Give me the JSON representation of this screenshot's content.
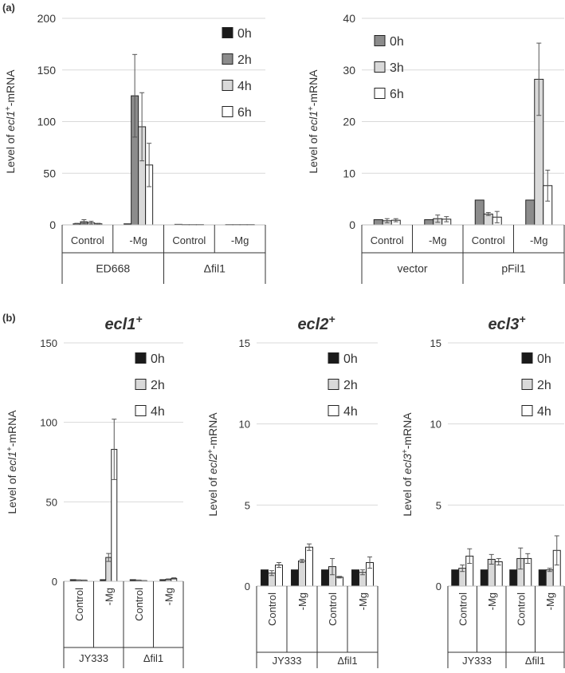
{
  "figure": {
    "panel_a_label": "(a)",
    "panel_b_label": "(b)"
  },
  "chart_data": [
    {
      "id": "a1",
      "type": "bar",
      "title": "",
      "ylabel_parts": [
        "Level of ",
        "ecl1",
        "+",
        "-mRNA"
      ],
      "ylim": [
        0,
        200
      ],
      "yticks": [
        0,
        50,
        100,
        150,
        200
      ],
      "grid": true,
      "legend_position": "top-right",
      "categories": [
        "Control",
        "-Mg",
        "Control",
        "-Mg"
      ],
      "groups": [
        "ED668",
        "Δfil1"
      ],
      "series": [
        {
          "name": "0h",
          "color": "#1a1a1a",
          "values": [
            1,
            1,
            0.5,
            0.3
          ],
          "errors": [
            0.5,
            0,
            0,
            0
          ]
        },
        {
          "name": "2h",
          "color": "#8c8c8c",
          "values": [
            3,
            125,
            0.3,
            0.3
          ],
          "errors": [
            2,
            40,
            0,
            0
          ]
        },
        {
          "name": "4h",
          "color": "#d9d9d9",
          "values": [
            2,
            95,
            0.3,
            0.3
          ],
          "errors": [
            1.5,
            33,
            0,
            0
          ]
        },
        {
          "name": "6h",
          "color": "#ffffff",
          "values": [
            1,
            58,
            0.3,
            0.3
          ],
          "errors": [
            0.5,
            21,
            0,
            0
          ]
        }
      ]
    },
    {
      "id": "a2",
      "type": "bar",
      "title": "",
      "ylabel_parts": [
        "Level of ",
        "ecl1",
        "+",
        "-mRNA"
      ],
      "ylim": [
        0,
        40
      ],
      "yticks": [
        0,
        10,
        20,
        30,
        40
      ],
      "grid": true,
      "legend_position": "top-left",
      "categories": [
        "Control",
        "-Mg",
        "Control",
        "-Mg"
      ],
      "groups": [
        "vector",
        "pFil1"
      ],
      "series": [
        {
          "name": "0h",
          "color": "#8c8c8c",
          "values": [
            1,
            1,
            4.8,
            4.8
          ],
          "errors": [
            0,
            0,
            0,
            0
          ]
        },
        {
          "name": "3h",
          "color": "#d9d9d9",
          "values": [
            0.8,
            1.2,
            2.1,
            28.2
          ],
          "errors": [
            0.4,
            0.7,
            0.3,
            7
          ]
        },
        {
          "name": "6h",
          "color": "#ffffff",
          "values": [
            0.9,
            1.1,
            1.5,
            7.6
          ],
          "errors": [
            0.3,
            0.5,
            1.1,
            3
          ]
        }
      ]
    },
    {
      "id": "b1",
      "type": "bar",
      "title_parts": [
        "ecl1",
        "+"
      ],
      "ylabel_parts": [
        "Level of ",
        "ecl1",
        "+",
        "-mRNA"
      ],
      "ylim": [
        0,
        150
      ],
      "yticks": [
        0,
        50,
        100,
        150
      ],
      "grid": true,
      "legend_position": "top-right",
      "categories": [
        "Control",
        "-Mg",
        "Control",
        "-Mg"
      ],
      "groups": [
        "JY333",
        "Δfil1"
      ],
      "series": [
        {
          "name": "0h",
          "color": "#1a1a1a",
          "values": [
            1,
            1,
            1,
            1
          ],
          "errors": [
            0,
            0,
            0,
            0
          ]
        },
        {
          "name": "2h",
          "color": "#d9d9d9",
          "values": [
            0.7,
            15,
            0.6,
            1.2
          ],
          "errors": [
            0.2,
            2.5,
            0.2,
            0.3
          ]
        },
        {
          "name": "4h",
          "color": "#ffffff",
          "values": [
            0.6,
            83,
            0.4,
            1.8
          ],
          "errors": [
            0.2,
            19,
            0.1,
            0.4
          ]
        }
      ]
    },
    {
      "id": "b2",
      "type": "bar",
      "title_parts": [
        "ecl2",
        "+"
      ],
      "ylabel_parts": [
        "Level of ",
        "ecl2",
        "+",
        "-mRNA"
      ],
      "ylim": [
        0,
        15
      ],
      "yticks": [
        0,
        5,
        10,
        15
      ],
      "grid": true,
      "legend_position": "top-right",
      "categories": [
        "Control",
        "-Mg",
        "Control",
        "-Mg"
      ],
      "groups": [
        "JY333",
        "Δfil1"
      ],
      "series": [
        {
          "name": "0h",
          "color": "#1a1a1a",
          "values": [
            1,
            1,
            1,
            1
          ],
          "errors": [
            0,
            0,
            0,
            0
          ]
        },
        {
          "name": "2h",
          "color": "#d9d9d9",
          "values": [
            0.8,
            1.55,
            1.2,
            0.85
          ],
          "errors": [
            0.15,
            0.1,
            0.5,
            0.15
          ]
        },
        {
          "name": "4h",
          "color": "#ffffff",
          "values": [
            1.3,
            2.4,
            0.55,
            1.45
          ],
          "errors": [
            0.15,
            0.2,
            0.05,
            0.35
          ]
        }
      ]
    },
    {
      "id": "b3",
      "type": "bar",
      "title_parts": [
        "ecl3",
        "+"
      ],
      "ylabel_parts": [
        "Level of ",
        "ecl3",
        "+",
        "-mRNA"
      ],
      "ylim": [
        0,
        15
      ],
      "yticks": [
        0,
        5,
        10,
        15
      ],
      "grid": true,
      "legend_position": "top-right",
      "categories": [
        "Control",
        "-Mg",
        "Control",
        "-Mg"
      ],
      "groups": [
        "JY333",
        "Δfil1"
      ],
      "series": [
        {
          "name": "0h",
          "color": "#1a1a1a",
          "values": [
            1,
            1,
            1,
            1
          ],
          "errors": [
            0,
            0,
            0,
            0
          ]
        },
        {
          "name": "2h",
          "color": "#d9d9d9",
          "values": [
            1.1,
            1.65,
            1.7,
            1
          ],
          "errors": [
            0.2,
            0.3,
            0.65,
            0.1
          ]
        },
        {
          "name": "4h",
          "color": "#ffffff",
          "values": [
            1.85,
            1.5,
            1.7,
            2.2
          ],
          "errors": [
            0.45,
            0.2,
            0.3,
            0.9
          ]
        }
      ]
    }
  ]
}
